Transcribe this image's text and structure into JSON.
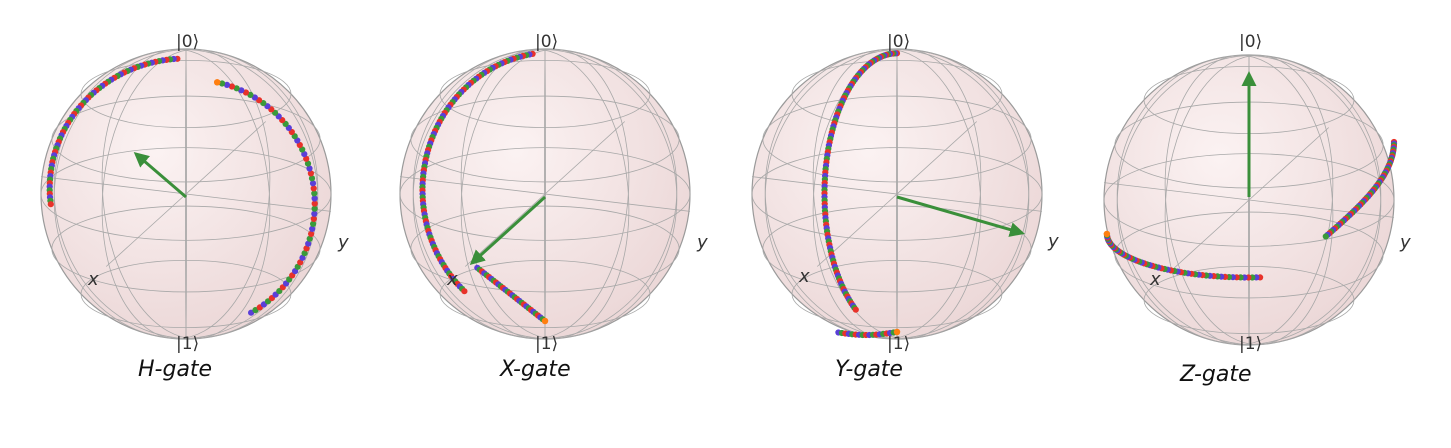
{
  "colors": {
    "sphere_fill": "#f4e3e3",
    "sphere_edge": "#9a9a9a",
    "grid": "#a8a8a8",
    "vector": "#3a8f3a",
    "trail": [
      "#e8322a",
      "#5a3fd8",
      "#3a9a3a",
      "#ff7f0e"
    ]
  },
  "spheres": [
    {
      "name": "h-gate",
      "labels": {
        "zero": "|0⟩",
        "one": "|1⟩",
        "x": "x",
        "y": "y"
      },
      "caption": "H-gate"
    },
    {
      "name": "x-gate",
      "labels": {
        "zero": "|0⟩",
        "one": "|1⟩",
        "x": "x",
        "y": "y"
      },
      "caption": "X-gate"
    },
    {
      "name": "y-gate",
      "labels": {
        "zero": "|0⟩",
        "one": "|1⟩",
        "x": "x",
        "y": "y"
      },
      "caption": "Y-gate"
    },
    {
      "name": "z-gate",
      "labels": {
        "zero": "|0⟩",
        "one": "|1⟩",
        "x": "x",
        "y": "y"
      },
      "caption": "Z-gate"
    }
  ]
}
